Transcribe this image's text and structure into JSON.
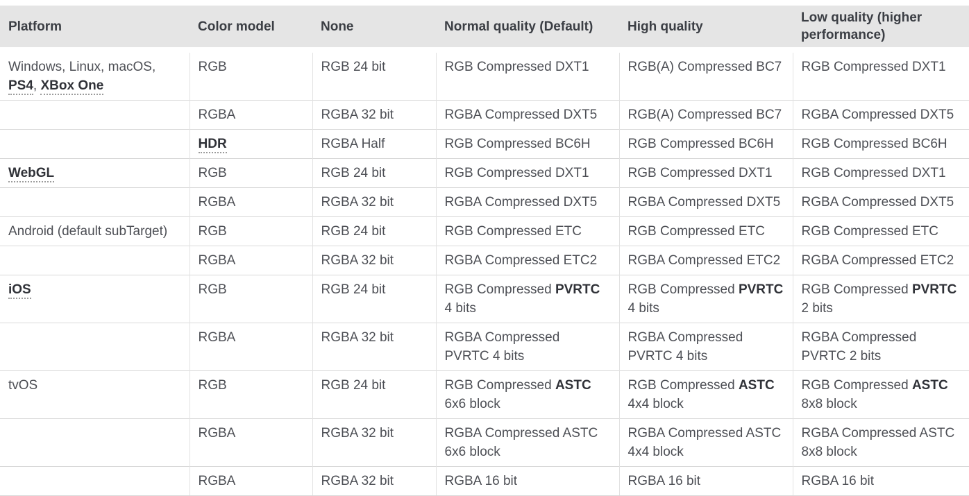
{
  "colors": {
    "header_bg": "#e5e5e5",
    "header_text": "#3b3e44",
    "body_text": "#4d4f55",
    "link_text": "#303238",
    "row_border": "#d8d8d8",
    "col_border": "#e2e2e2",
    "underline_dot": "#9b9b9b",
    "page_bg": "#ffffff"
  },
  "table": {
    "headers": [
      {
        "label": "Platform"
      },
      {
        "label": "Color model"
      },
      {
        "label": "None"
      },
      {
        "label": "Normal quality (Default)"
      },
      {
        "label": "High quality"
      },
      {
        "label": "Low quality (higher performance)"
      }
    ],
    "rows": [
      {
        "cells": [
          {
            "segments": [
              {
                "t": "Windows, Linux, macOS,"
              },
              {
                "br": true
              },
              {
                "t": "PS4",
                "glossary": true
              },
              {
                "t": ", "
              },
              {
                "t": "XBox One",
                "glossary": true
              }
            ]
          },
          {
            "segments": [
              {
                "t": "RGB"
              }
            ]
          },
          {
            "segments": [
              {
                "t": "RGB 24 bit"
              }
            ]
          },
          {
            "segments": [
              {
                "t": "RGB Compressed DXT1"
              }
            ]
          },
          {
            "segments": [
              {
                "t": "RGB(A) Compressed BC7"
              }
            ]
          },
          {
            "segments": [
              {
                "t": "RGB Compressed DXT1"
              }
            ]
          }
        ]
      },
      {
        "cells": [
          {
            "segments": []
          },
          {
            "segments": [
              {
                "t": "RGBA"
              }
            ]
          },
          {
            "segments": [
              {
                "t": "RGBA 32 bit"
              }
            ]
          },
          {
            "segments": [
              {
                "t": "RGBA Compressed DXT5"
              }
            ]
          },
          {
            "segments": [
              {
                "t": "RGB(A) Compressed BC7"
              }
            ]
          },
          {
            "segments": [
              {
                "t": "RGBA Compressed DXT5"
              }
            ]
          }
        ]
      },
      {
        "cells": [
          {
            "segments": []
          },
          {
            "segments": [
              {
                "t": "HDR",
                "glossary": true
              }
            ]
          },
          {
            "segments": [
              {
                "t": "RGBA Half"
              }
            ]
          },
          {
            "segments": [
              {
                "t": "RGB Compressed BC6H"
              }
            ]
          },
          {
            "segments": [
              {
                "t": "RGB Compressed BC6H"
              }
            ]
          },
          {
            "segments": [
              {
                "t": "RGB Compressed BC6H"
              }
            ]
          }
        ]
      },
      {
        "cells": [
          {
            "segments": [
              {
                "t": "WebGL",
                "glossary": true
              }
            ]
          },
          {
            "segments": [
              {
                "t": "RGB"
              }
            ]
          },
          {
            "segments": [
              {
                "t": "RGB 24 bit"
              }
            ]
          },
          {
            "segments": [
              {
                "t": "RGB Compressed DXT1"
              }
            ]
          },
          {
            "segments": [
              {
                "t": "RGB Compressed DXT1"
              }
            ]
          },
          {
            "segments": [
              {
                "t": "RGB Compressed DXT1"
              }
            ]
          }
        ]
      },
      {
        "cells": [
          {
            "segments": []
          },
          {
            "segments": [
              {
                "t": "RGBA"
              }
            ]
          },
          {
            "segments": [
              {
                "t": "RGBA 32 bit"
              }
            ]
          },
          {
            "segments": [
              {
                "t": "RGBA Compressed DXT5"
              }
            ]
          },
          {
            "segments": [
              {
                "t": "RGBA Compressed DXT5"
              }
            ]
          },
          {
            "segments": [
              {
                "t": "RGBA Compressed DXT5"
              }
            ]
          }
        ]
      },
      {
        "cells": [
          {
            "segments": [
              {
                "t": "Android (default subTarget)"
              }
            ]
          },
          {
            "segments": [
              {
                "t": "RGB"
              }
            ]
          },
          {
            "segments": [
              {
                "t": "RGB 24 bit"
              }
            ]
          },
          {
            "segments": [
              {
                "t": "RGB Compressed ETC"
              }
            ]
          },
          {
            "segments": [
              {
                "t": "RGB Compressed ETC"
              }
            ]
          },
          {
            "segments": [
              {
                "t": "RGB Compressed ETC"
              }
            ]
          }
        ]
      },
      {
        "cells": [
          {
            "segments": []
          },
          {
            "segments": [
              {
                "t": "RGBA"
              }
            ]
          },
          {
            "segments": [
              {
                "t": "RGBA 32 bit"
              }
            ]
          },
          {
            "segments": [
              {
                "t": "RGBA Compressed ETC2"
              }
            ]
          },
          {
            "segments": [
              {
                "t": "RGBA Compressed ETC2"
              }
            ]
          },
          {
            "segments": [
              {
                "t": "RGBA Compressed ETC2"
              }
            ]
          }
        ]
      },
      {
        "cells": [
          {
            "segments": [
              {
                "t": "iOS",
                "glossary": true
              }
            ]
          },
          {
            "segments": [
              {
                "t": "RGB"
              }
            ]
          },
          {
            "segments": [
              {
                "t": "RGB 24 bit"
              }
            ]
          },
          {
            "segments": [
              {
                "t": "RGB Compressed "
              },
              {
                "t": "PVRTC",
                "bold": true
              },
              {
                "br": true
              },
              {
                "t": "4 bits"
              }
            ]
          },
          {
            "segments": [
              {
                "t": "RGB Compressed "
              },
              {
                "t": "PVRTC",
                "bold": true
              },
              {
                "br": true
              },
              {
                "t": "4 bits"
              }
            ]
          },
          {
            "segments": [
              {
                "t": "RGB Compressed "
              },
              {
                "t": "PVRTC",
                "bold": true
              },
              {
                "br": true
              },
              {
                "t": "2 bits"
              }
            ]
          }
        ]
      },
      {
        "cells": [
          {
            "segments": []
          },
          {
            "segments": [
              {
                "t": "RGBA"
              }
            ]
          },
          {
            "segments": [
              {
                "t": "RGBA 32 bit"
              }
            ]
          },
          {
            "segments": [
              {
                "t": "RGBA Compressed"
              },
              {
                "br": true
              },
              {
                "t": "PVRTC 4 bits"
              }
            ]
          },
          {
            "segments": [
              {
                "t": "RGBA Compressed"
              },
              {
                "br": true
              },
              {
                "t": "PVRTC 4 bits"
              }
            ]
          },
          {
            "segments": [
              {
                "t": "RGBA Compressed"
              },
              {
                "br": true
              },
              {
                "t": "PVRTC 2 bits"
              }
            ]
          }
        ]
      },
      {
        "cells": [
          {
            "segments": [
              {
                "t": "tvOS"
              }
            ]
          },
          {
            "segments": [
              {
                "t": "RGB"
              }
            ]
          },
          {
            "segments": [
              {
                "t": "RGB 24 bit"
              }
            ]
          },
          {
            "segments": [
              {
                "t": "RGB Compressed "
              },
              {
                "t": "ASTC",
                "bold": true
              },
              {
                "br": true
              },
              {
                "t": "6x6 block"
              }
            ]
          },
          {
            "segments": [
              {
                "t": "RGB Compressed "
              },
              {
                "t": "ASTC",
                "bold": true
              },
              {
                "br": true
              },
              {
                "t": "4x4 block"
              }
            ]
          },
          {
            "segments": [
              {
                "t": "RGB Compressed "
              },
              {
                "t": "ASTC",
                "bold": true
              },
              {
                "br": true
              },
              {
                "t": "8x8 block"
              }
            ]
          }
        ]
      },
      {
        "cells": [
          {
            "segments": []
          },
          {
            "segments": [
              {
                "t": "RGBA"
              }
            ]
          },
          {
            "segments": [
              {
                "t": "RGBA 32 bit"
              }
            ]
          },
          {
            "segments": [
              {
                "t": "RGBA Compressed ASTC"
              },
              {
                "br": true
              },
              {
                "t": "6x6 block"
              }
            ]
          },
          {
            "segments": [
              {
                "t": "RGBA Compressed ASTC"
              },
              {
                "br": true
              },
              {
                "t": "4x4 block"
              }
            ]
          },
          {
            "segments": [
              {
                "t": "RGBA Compressed ASTC"
              },
              {
                "br": true
              },
              {
                "t": "8x8 block"
              }
            ]
          }
        ]
      },
      {
        "cells": [
          {
            "segments": []
          },
          {
            "segments": [
              {
                "t": "RGBA"
              }
            ]
          },
          {
            "segments": [
              {
                "t": "RGBA 32 bit"
              }
            ]
          },
          {
            "segments": [
              {
                "t": "RGBA 16 bit"
              }
            ]
          },
          {
            "segments": [
              {
                "t": "RGBA 16 bit"
              }
            ]
          },
          {
            "segments": [
              {
                "t": "RGBA 16 bit"
              }
            ]
          }
        ]
      }
    ]
  }
}
